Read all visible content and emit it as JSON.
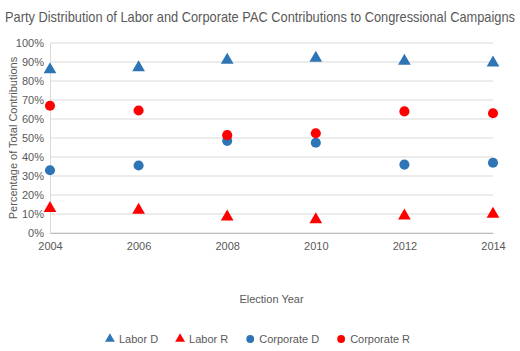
{
  "chart_data": {
    "type": "scatter",
    "title": "Party Distribution of Labor and Corporate PAC Contributions to Congressional Campaigns",
    "x_label": "Election Year",
    "y_label": "Percentage of Total Contributions",
    "x": [
      2004,
      2006,
      2008,
      2010,
      2012,
      2014
    ],
    "xlim": [
      2004,
      2014
    ],
    "xticks": [
      2004,
      2006,
      2008,
      2010,
      2012,
      2014
    ],
    "ylim": [
      0,
      100
    ],
    "yticks": [
      {
        "value": 0,
        "label": "0%"
      },
      {
        "value": 10,
        "label": "10%"
      },
      {
        "value": 20,
        "label": "20%"
      },
      {
        "value": 30,
        "label": "30%"
      },
      {
        "value": 40,
        "label": "40%"
      },
      {
        "value": 50,
        "label": "50%"
      },
      {
        "value": 60,
        "label": "60%"
      },
      {
        "value": 70,
        "label": "70%"
      },
      {
        "value": 80,
        "label": "80%"
      },
      {
        "value": 90,
        "label": "90%"
      },
      {
        "value": 100,
        "label": "100%"
      }
    ],
    "grid": true,
    "legend": "bottom",
    "series": [
      {
        "name": "Labor D",
        "color": "#2e75b6",
        "marker": "triangle",
        "values": [
          86,
          87,
          91,
          92,
          90.5,
          89.5
        ]
      },
      {
        "name": "Labor R",
        "color": "#ff0000",
        "marker": "triangle",
        "values": [
          13,
          12,
          8.5,
          7,
          9,
          10
        ]
      },
      {
        "name": "Corporate D",
        "color": "#2e75b6",
        "marker": "circle",
        "values": [
          33,
          35.5,
          48.5,
          47.5,
          36,
          37
        ]
      },
      {
        "name": "Corporate R",
        "color": "#ff0000",
        "marker": "circle",
        "values": [
          67,
          64.5,
          51.5,
          52.5,
          64,
          63
        ]
      }
    ]
  }
}
